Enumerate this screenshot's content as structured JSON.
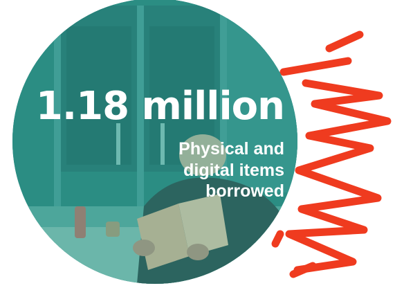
{
  "stat": {
    "number": "1.18 million",
    "caption_lines": [
      "Physical and",
      "digital items",
      "borrowed"
    ]
  },
  "colors": {
    "teal_overlay": "#2e8f86",
    "squiggle": "#ef3b1f",
    "text": "#ffffff"
  }
}
